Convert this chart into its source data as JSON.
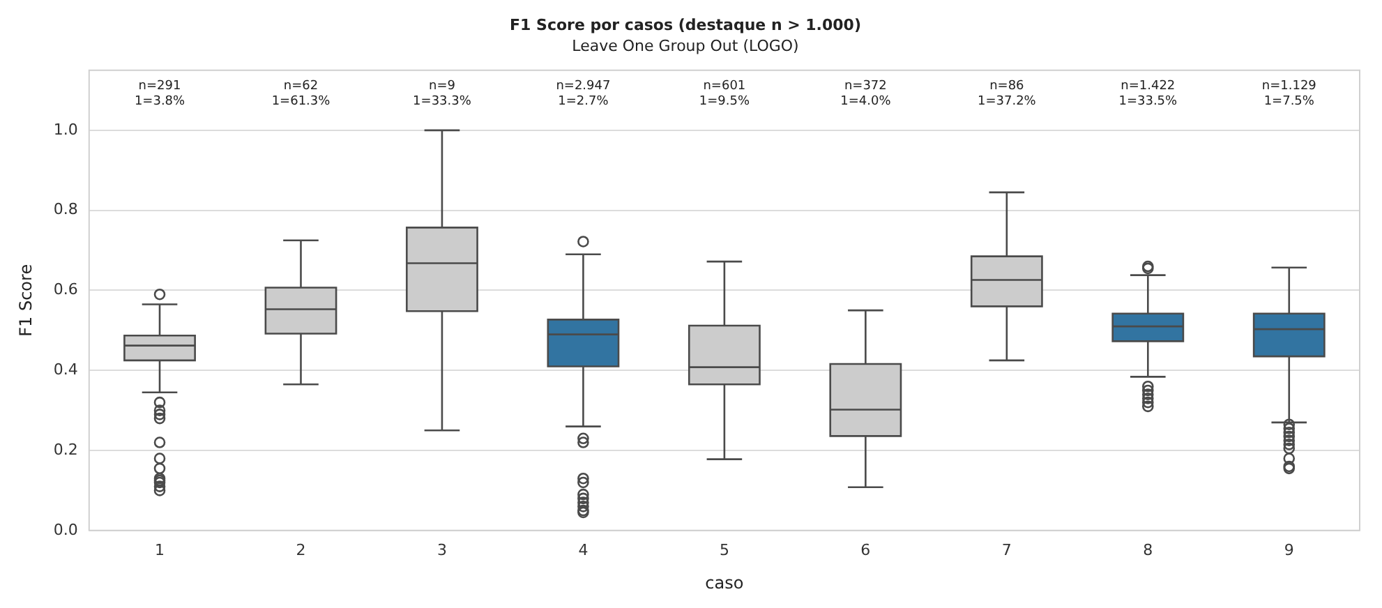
{
  "chart_data": {
    "type": "box",
    "title": "F1 Score por casos (destaque n > 1.000)",
    "subtitle": "Leave One Group Out (LOGO)",
    "xlabel": "caso",
    "ylabel": "F1 Score",
    "categories": [
      "1",
      "2",
      "3",
      "4",
      "5",
      "6",
      "7",
      "8",
      "9"
    ],
    "colors": [
      "#cccccc",
      "#cccccc",
      "#cccccc",
      "#3274a1",
      "#cccccc",
      "#cccccc",
      "#cccccc",
      "#3274a1",
      "#3274a1"
    ],
    "boxes": [
      {
        "low": 0.345,
        "q1": 0.425,
        "median": 0.462,
        "q3": 0.487,
        "high": 0.565,
        "outliers": [
          0.59,
          0.32,
          0.3,
          0.29,
          0.28,
          0.22,
          0.18,
          0.155,
          0.13,
          0.125,
          0.12,
          0.11,
          0.1
        ]
      },
      {
        "low": 0.365,
        "q1": 0.492,
        "median": 0.553,
        "q3": 0.607,
        "high": 0.725
      },
      {
        "low": 0.25,
        "q1": 0.548,
        "median": 0.668,
        "q3": 0.757,
        "high": 1.0
      },
      {
        "low": 0.26,
        "q1": 0.41,
        "median": 0.49,
        "q3": 0.527,
        "high": 0.69,
        "outliers": [
          0.722,
          0.23,
          0.22,
          0.13,
          0.12,
          0.09,
          0.08,
          0.07,
          0.06,
          0.05,
          0.045
        ]
      },
      {
        "low": 0.178,
        "q1": 0.365,
        "median": 0.408,
        "q3": 0.512,
        "high": 0.672
      },
      {
        "low": 0.108,
        "q1": 0.236,
        "median": 0.302,
        "q3": 0.416,
        "high": 0.55
      },
      {
        "low": 0.425,
        "q1": 0.56,
        "median": 0.626,
        "q3": 0.685,
        "high": 0.845
      },
      {
        "low": 0.384,
        "q1": 0.473,
        "median": 0.51,
        "q3": 0.542,
        "high": 0.638,
        "outliers": [
          0.66,
          0.655,
          0.36,
          0.35,
          0.34,
          0.33,
          0.32,
          0.31
        ]
      },
      {
        "low": 0.27,
        "q1": 0.435,
        "median": 0.503,
        "q3": 0.542,
        "high": 0.657,
        "outliers": [
          0.265,
          0.255,
          0.245,
          0.235,
          0.225,
          0.215,
          0.205,
          0.18,
          0.16,
          0.155
        ]
      }
    ],
    "ylim": [
      0,
      1.15
    ],
    "yticks": [
      {
        "value": 0,
        "label": "0.0"
      },
      0.2,
      0.4,
      0.6,
      0.8,
      {
        "value": 1,
        "label": "1.0"
      }
    ],
    "grid": "y",
    "legend": false,
    "annotations": [
      "n=291\n1=3.8%",
      "n=62\n1=61.3%",
      "n=9\n1=33.3%",
      "n=2.947\n1=2.7%",
      "n=601\n1=9.5%",
      "n=372\n1=4.0%",
      "n=86\n1=37.2%",
      "n=1.422\n1=33.5%",
      "n=1.129\n1=7.5%"
    ]
  }
}
